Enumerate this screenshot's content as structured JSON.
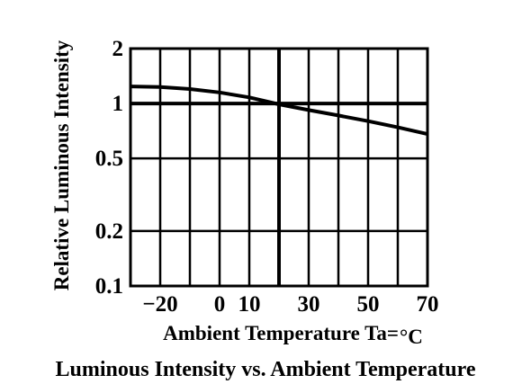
{
  "chart_data": {
    "type": "line",
    "title": "Luminous Intensity vs. Ambient Temperature",
    "xlabel": "Ambient Temperature Ta=",
    "xlabel_unit": "°C",
    "ylabel": "Relative Luminous Intensity",
    "x_ticks": [
      "−20",
      "0",
      "10",
      "30",
      "50",
      "70"
    ],
    "x_tick_values": [
      -20,
      0,
      10,
      30,
      50,
      70
    ],
    "y_ticks": [
      "2",
      "1",
      "0.5",
      "0.2",
      "0.1"
    ],
    "y_tick_values": [
      2,
      1,
      0.5,
      0.2,
      0.1
    ],
    "x_gridlines": [
      -20,
      -10,
      0,
      10,
      20,
      30,
      40,
      50,
      60,
      70
    ],
    "y_scale": "log",
    "xlim": [
      -30,
      70
    ],
    "ylim": [
      0.1,
      2
    ],
    "grid": true,
    "series": [
      {
        "x": [
          -30,
          -20,
          -10,
          0,
          10,
          20,
          30,
          40,
          50,
          60,
          70
        ],
        "y": [
          1.24,
          1.23,
          1.2,
          1.15,
          1.08,
          0.99,
          0.92,
          0.86,
          0.8,
          0.74,
          0.68
        ]
      }
    ]
  },
  "colors": {
    "line": "#000000",
    "background": "#ffffff"
  }
}
